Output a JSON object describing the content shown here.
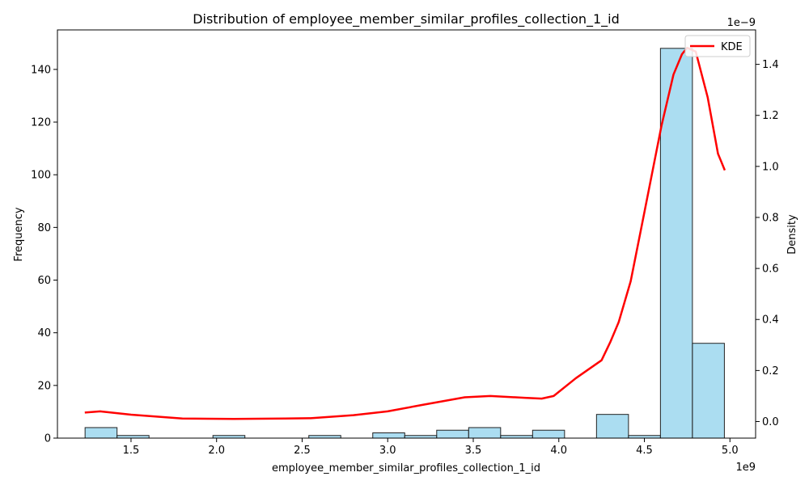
{
  "chart_data": {
    "type": "bar",
    "title": "Distribution of employee_member_similar_profiles_collection_1_id",
    "xlabel": "employee_member_similar_profiles_collection_1_id",
    "ylabel": "Frequency",
    "y2label": "Density",
    "x_offset_label": "1e9",
    "y2_offset_label": "1e−9",
    "xlim": [
      1.07,
      5.15
    ],
    "ylim": [
      0,
      155
    ],
    "y2lim": [
      -0.065,
      1.535
    ],
    "x_ticks": [
      1.5,
      2.0,
      2.5,
      3.0,
      3.5,
      4.0,
      4.5,
      5.0
    ],
    "x_tick_labels": [
      "1.5",
      "2.0",
      "2.5",
      "3.0",
      "3.5",
      "4.0",
      "4.5",
      "5.0"
    ],
    "y_ticks": [
      0,
      20,
      40,
      60,
      80,
      100,
      120,
      140
    ],
    "y_tick_labels": [
      "0",
      "20",
      "40",
      "60",
      "80",
      "100",
      "120",
      "140"
    ],
    "y2_ticks": [
      0.0,
      0.2,
      0.4,
      0.6,
      0.8,
      1.0,
      1.2,
      1.4
    ],
    "y2_tick_labels": [
      "0.0",
      "0.2",
      "0.4",
      "0.6",
      "0.8",
      "1.0",
      "1.2",
      "1.4"
    ],
    "grid": false,
    "legend": {
      "position": "top-right",
      "entries": [
        {
          "name": "KDE",
          "color": "#ff0000"
        }
      ]
    },
    "histogram": {
      "bin_start": 1.2315,
      "bin_width": 0.1868,
      "counts": [
        4,
        1,
        0,
        0,
        1,
        0,
        0,
        1,
        0,
        2,
        1,
        3,
        4,
        1,
        3,
        0,
        9,
        1,
        148,
        36
      ],
      "fill": "#87ceeb",
      "edge": "#222222"
    },
    "series": [
      {
        "name": "KDE",
        "color": "#ff0000",
        "x": [
          1.23,
          1.32,
          1.5,
          1.8,
          2.1,
          2.4,
          2.55,
          2.8,
          3.0,
          3.2,
          3.45,
          3.6,
          3.8,
          3.9,
          3.97,
          4.1,
          4.25,
          4.3,
          4.35,
          4.42,
          4.5,
          4.6,
          4.67,
          4.72,
          4.75,
          4.8,
          4.87,
          4.93,
          4.97
        ],
        "y": [
          0.035,
          0.04,
          0.027,
          0.012,
          0.01,
          0.012,
          0.013,
          0.025,
          0.04,
          0.065,
          0.095,
          0.1,
          0.093,
          0.09,
          0.1,
          0.17,
          0.24,
          0.31,
          0.39,
          0.55,
          0.82,
          1.16,
          1.36,
          1.44,
          1.465,
          1.45,
          1.27,
          1.05,
          0.985
        ]
      }
    ]
  }
}
